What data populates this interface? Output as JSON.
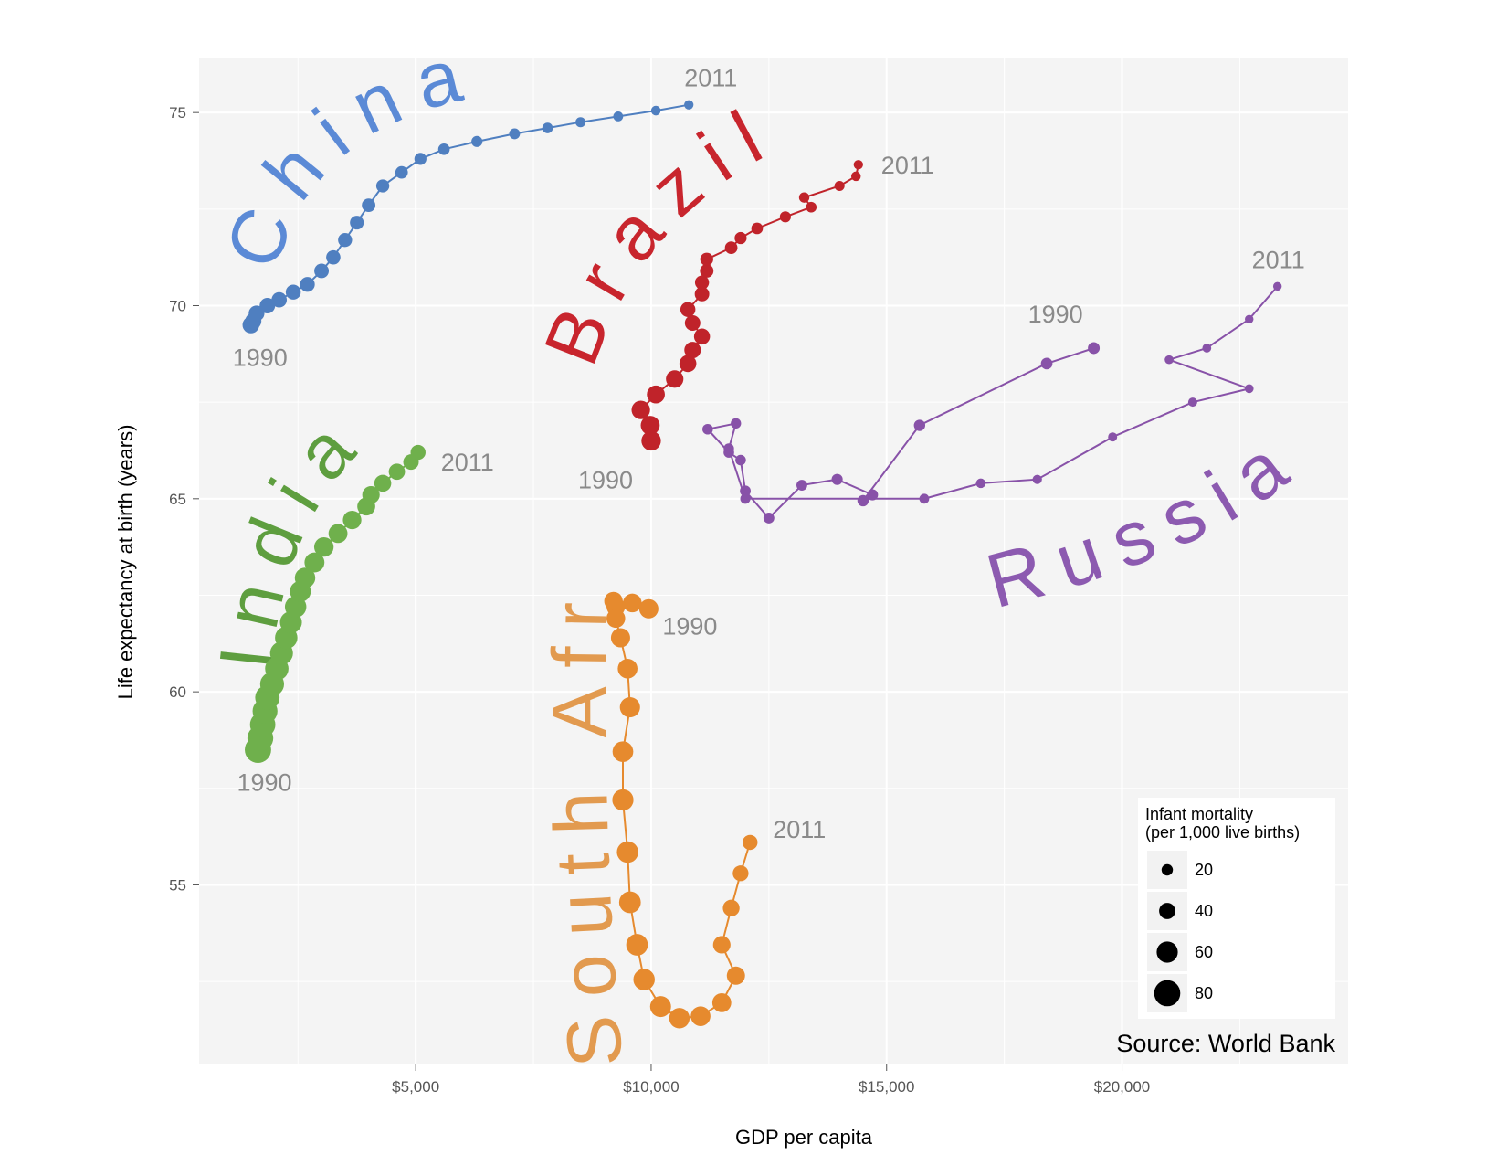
{
  "chart_data": {
    "type": "scatter",
    "title": "",
    "xlabel": "GDP per capita",
    "ylabel": "Life expectancy at birth (years)",
    "xlim": [
      400,
      24800
    ],
    "ylim": [
      50.35,
      76.4
    ],
    "x_ticks": [
      {
        "value": 5000,
        "label": "$5,000"
      },
      {
        "value": 10000,
        "label": "$10,000"
      },
      {
        "value": 15000,
        "label": "$15,000"
      },
      {
        "value": 20000,
        "label": "$20,000"
      }
    ],
    "y_ticks": [
      {
        "value": 55,
        "label": "55"
      },
      {
        "value": 60,
        "label": "60"
      },
      {
        "value": 65,
        "label": "65"
      },
      {
        "value": 70,
        "label": "70"
      },
      {
        "value": 75,
        "label": "75"
      }
    ],
    "grid": true,
    "size_variable": "Infant mortality (per 1,000 live births)",
    "legend": {
      "title_lines": [
        "Infant mortality",
        "(per 1,000 live births)"
      ],
      "placement": "bottom-right",
      "entries": [
        {
          "value": 20,
          "label": "20"
        },
        {
          "value": 40,
          "label": "40"
        },
        {
          "value": 60,
          "label": "60"
        },
        {
          "value": 80,
          "label": "80"
        }
      ]
    },
    "source": "Source: World Bank",
    "series": [
      {
        "name": "China",
        "color": "#4f7fc0",
        "label_color": "#5b8ad6",
        "start_label": "1990",
        "end_label": "2011",
        "points": [
          {
            "x": 1500,
            "y": 69.5,
            "m": 42
          },
          {
            "x": 1550,
            "y": 69.6,
            "m": 40
          },
          {
            "x": 1620,
            "y": 69.8,
            "m": 38
          },
          {
            "x": 1850,
            "y": 70.0,
            "m": 37
          },
          {
            "x": 2100,
            "y": 70.15,
            "m": 36
          },
          {
            "x": 2400,
            "y": 70.35,
            "m": 35
          },
          {
            "x": 2700,
            "y": 70.55,
            "m": 34
          },
          {
            "x": 3000,
            "y": 70.9,
            "m": 33
          },
          {
            "x": 3250,
            "y": 71.25,
            "m": 32
          },
          {
            "x": 3500,
            "y": 71.7,
            "m": 31
          },
          {
            "x": 3750,
            "y": 72.15,
            "m": 30
          },
          {
            "x": 4000,
            "y": 72.6,
            "m": 29
          },
          {
            "x": 4300,
            "y": 73.1,
            "m": 27
          },
          {
            "x": 4700,
            "y": 73.45,
            "m": 25
          },
          {
            "x": 5100,
            "y": 73.8,
            "m": 23
          },
          {
            "x": 5600,
            "y": 74.05,
            "m": 21
          },
          {
            "x": 6300,
            "y": 74.25,
            "m": 19
          },
          {
            "x": 7100,
            "y": 74.45,
            "m": 18
          },
          {
            "x": 7800,
            "y": 74.6,
            "m": 17
          },
          {
            "x": 8500,
            "y": 74.75,
            "m": 15
          },
          {
            "x": 9300,
            "y": 74.9,
            "m": 14
          },
          {
            "x": 10100,
            "y": 75.05,
            "m": 13
          },
          {
            "x": 10800,
            "y": 75.2,
            "m": 12
          }
        ]
      },
      {
        "name": "Brazil",
        "color": "#c0232a",
        "label_color": "#c8252d",
        "start_label": "1990",
        "end_label": "2011",
        "points": [
          {
            "x": 10000,
            "y": 66.5,
            "m": 53
          },
          {
            "x": 9980,
            "y": 66.9,
            "m": 51
          },
          {
            "x": 9780,
            "y": 67.3,
            "m": 49
          },
          {
            "x": 10100,
            "y": 67.7,
            "m": 47
          },
          {
            "x": 10500,
            "y": 68.1,
            "m": 45
          },
          {
            "x": 10780,
            "y": 68.5,
            "m": 43
          },
          {
            "x": 10880,
            "y": 68.85,
            "m": 41
          },
          {
            "x": 11080,
            "y": 69.2,
            "m": 39
          },
          {
            "x": 10880,
            "y": 69.55,
            "m": 37
          },
          {
            "x": 10780,
            "y": 69.9,
            "m": 35
          },
          {
            "x": 11080,
            "y": 70.3,
            "m": 33
          },
          {
            "x": 11080,
            "y": 70.6,
            "m": 31
          },
          {
            "x": 11180,
            "y": 70.9,
            "m": 29
          },
          {
            "x": 11180,
            "y": 71.2,
            "m": 27
          },
          {
            "x": 11700,
            "y": 71.5,
            "m": 25
          },
          {
            "x": 11900,
            "y": 71.75,
            "m": 23
          },
          {
            "x": 12250,
            "y": 72.0,
            "m": 21
          },
          {
            "x": 12850,
            "y": 72.3,
            "m": 19
          },
          {
            "x": 13400,
            "y": 72.55,
            "m": 17
          },
          {
            "x": 13250,
            "y": 72.8,
            "m": 16
          },
          {
            "x": 14000,
            "y": 73.1,
            "m": 15
          },
          {
            "x": 14350,
            "y": 73.35,
            "m": 13
          },
          {
            "x": 14400,
            "y": 73.65,
            "m": 12
          }
        ]
      },
      {
        "name": "Russia",
        "color": "#8852a8",
        "label_color": "#8c5ab0",
        "start_label": "1990",
        "end_label": "2011",
        "points": [
          {
            "x": 19400,
            "y": 68.9,
            "m": 22
          },
          {
            "x": 18400,
            "y": 68.5,
            "m": 21
          },
          {
            "x": 15700,
            "y": 66.9,
            "m": 20
          },
          {
            "x": 14500,
            "y": 64.95,
            "m": 20
          },
          {
            "x": 14700,
            "y": 65.1,
            "m": 19
          },
          {
            "x": 13950,
            "y": 65.5,
            "m": 19
          },
          {
            "x": 13200,
            "y": 65.35,
            "m": 18
          },
          {
            "x": 12500,
            "y": 64.5,
            "m": 18
          },
          {
            "x": 12000,
            "y": 65.2,
            "m": 18
          },
          {
            "x": 11900,
            "y": 66.0,
            "m": 17
          },
          {
            "x": 11650,
            "y": 66.2,
            "m": 17
          },
          {
            "x": 11200,
            "y": 66.8,
            "m": 17
          },
          {
            "x": 11800,
            "y": 66.95,
            "m": 16
          },
          {
            "x": 11650,
            "y": 66.3,
            "m": 16
          },
          {
            "x": 12000,
            "y": 65.0,
            "m": 15
          },
          {
            "x": 15800,
            "y": 65.0,
            "m": 14
          },
          {
            "x": 17000,
            "y": 65.4,
            "m": 13
          },
          {
            "x": 18200,
            "y": 65.5,
            "m": 12
          },
          {
            "x": 19800,
            "y": 66.6,
            "m": 11
          },
          {
            "x": 21500,
            "y": 67.5,
            "m": 11
          },
          {
            "x": 22700,
            "y": 67.85,
            "m": 10
          },
          {
            "x": 21000,
            "y": 68.6,
            "m": 10
          },
          {
            "x": 21800,
            "y": 68.9,
            "m": 10
          },
          {
            "x": 22700,
            "y": 69.65,
            "m": 9
          },
          {
            "x": 23300,
            "y": 70.5,
            "m": 9
          }
        ]
      },
      {
        "name": "India",
        "color": "#6fb04c",
        "label_color": "#5e9e3f",
        "start_label": "1990",
        "end_label": "2011",
        "points": [
          {
            "x": 1650,
            "y": 58.5,
            "m": 81
          },
          {
            "x": 1700,
            "y": 58.8,
            "m": 79
          },
          {
            "x": 1750,
            "y": 59.15,
            "m": 77
          },
          {
            "x": 1800,
            "y": 59.5,
            "m": 75
          },
          {
            "x": 1850,
            "y": 59.85,
            "m": 73
          },
          {
            "x": 1950,
            "y": 60.2,
            "m": 71
          },
          {
            "x": 2050,
            "y": 60.6,
            "m": 69
          },
          {
            "x": 2150,
            "y": 61.0,
            "m": 67
          },
          {
            "x": 2250,
            "y": 61.4,
            "m": 65
          },
          {
            "x": 2350,
            "y": 61.8,
            "m": 63
          },
          {
            "x": 2450,
            "y": 62.2,
            "m": 61
          },
          {
            "x": 2550,
            "y": 62.6,
            "m": 59
          },
          {
            "x": 2650,
            "y": 62.95,
            "m": 57
          },
          {
            "x": 2850,
            "y": 63.35,
            "m": 55
          },
          {
            "x": 3050,
            "y": 63.75,
            "m": 53
          },
          {
            "x": 3350,
            "y": 64.1,
            "m": 51
          },
          {
            "x": 3650,
            "y": 64.45,
            "m": 49
          },
          {
            "x": 3950,
            "y": 64.8,
            "m": 47
          },
          {
            "x": 4050,
            "y": 65.1,
            "m": 45
          },
          {
            "x": 4300,
            "y": 65.4,
            "m": 43
          },
          {
            "x": 4600,
            "y": 65.7,
            "m": 40
          },
          {
            "x": 4900,
            "y": 65.95,
            "m": 37
          },
          {
            "x": 5050,
            "y": 66.2,
            "m": 35
          }
        ]
      },
      {
        "name": "South Africa",
        "color": "#e68a2e",
        "label_color": "#e29a4f",
        "start_label": "1990",
        "end_label": "2011",
        "points": [
          {
            "x": 9950,
            "y": 62.15,
            "m": 52
          },
          {
            "x": 9600,
            "y": 62.3,
            "m": 50
          },
          {
            "x": 9250,
            "y": 62.2,
            "m": 49
          },
          {
            "x": 9200,
            "y": 62.35,
            "m": 49
          },
          {
            "x": 9250,
            "y": 61.9,
            "m": 50
          },
          {
            "x": 9350,
            "y": 61.4,
            "m": 52
          },
          {
            "x": 9500,
            "y": 60.6,
            "m": 54
          },
          {
            "x": 9550,
            "y": 59.6,
            "m": 56
          },
          {
            "x": 9400,
            "y": 58.45,
            "m": 58
          },
          {
            "x": 9400,
            "y": 57.2,
            "m": 60
          },
          {
            "x": 9500,
            "y": 55.85,
            "m": 61
          },
          {
            "x": 9550,
            "y": 54.55,
            "m": 62
          },
          {
            "x": 9700,
            "y": 53.45,
            "m": 62
          },
          {
            "x": 9850,
            "y": 52.55,
            "m": 61
          },
          {
            "x": 10200,
            "y": 51.85,
            "m": 59
          },
          {
            "x": 10600,
            "y": 51.55,
            "m": 57
          },
          {
            "x": 11050,
            "y": 51.6,
            "m": 54
          },
          {
            "x": 11500,
            "y": 51.95,
            "m": 51
          },
          {
            "x": 11800,
            "y": 52.65,
            "m": 48
          },
          {
            "x": 11500,
            "y": 53.45,
            "m": 45
          },
          {
            "x": 11700,
            "y": 54.4,
            "m": 42
          },
          {
            "x": 11900,
            "y": 55.3,
            "m": 38
          },
          {
            "x": 12100,
            "y": 56.1,
            "m": 35
          }
        ]
      }
    ]
  }
}
